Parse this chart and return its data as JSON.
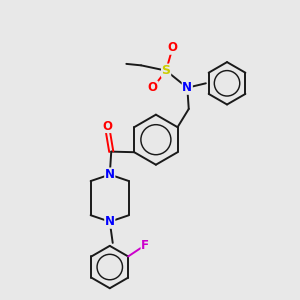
{
  "bg_color": "#e8e8e8",
  "bond_color": "#1a1a1a",
  "atom_colors": {
    "N": "#0000ff",
    "O": "#ff0000",
    "S": "#cccc00",
    "F": "#cc00cc",
    "C": "#1a1a1a"
  },
  "font_size": 8.5,
  "bond_width": 1.4,
  "fig_size": [
    3.0,
    3.0
  ],
  "dpi": 100
}
